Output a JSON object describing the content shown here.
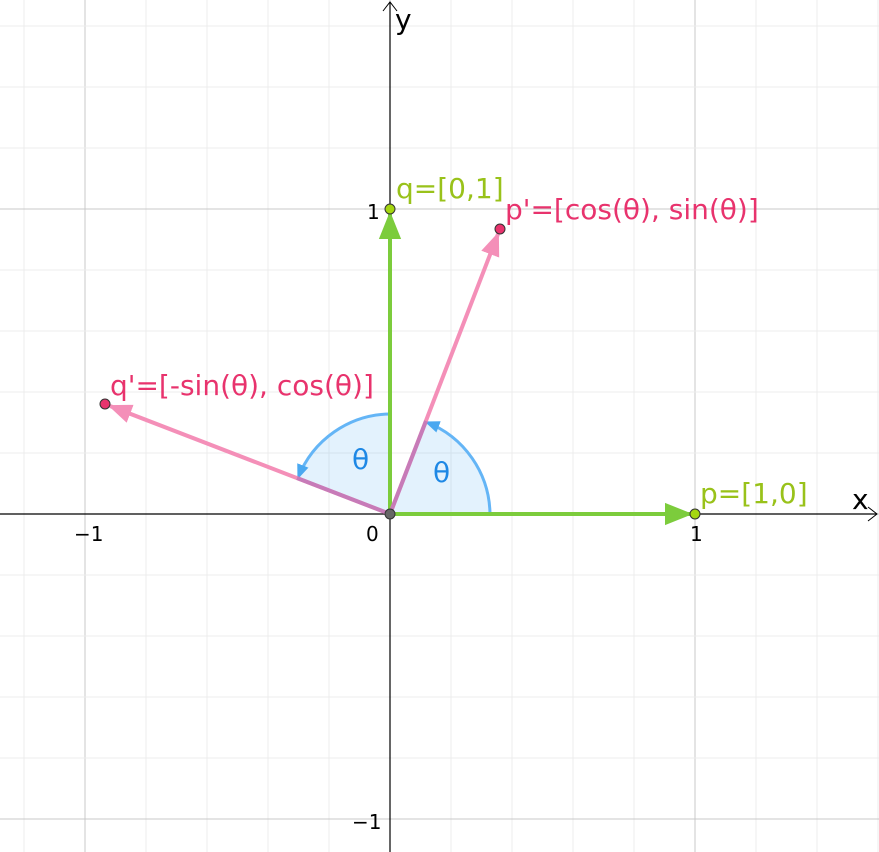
{
  "axes": {
    "x_label": "x",
    "y_label": "y",
    "x_ticks": [
      "−1",
      "0",
      "1"
    ],
    "y_ticks": [
      "1",
      "−1"
    ]
  },
  "points": {
    "p": "p=[1,0]",
    "q": "q=[0,1]",
    "p_rot": "p'=[cos(θ), sin(θ)]",
    "q_rot": "q'=[-sin(θ), cos(θ)]"
  },
  "angles": [
    "θ",
    "θ"
  ]
}
